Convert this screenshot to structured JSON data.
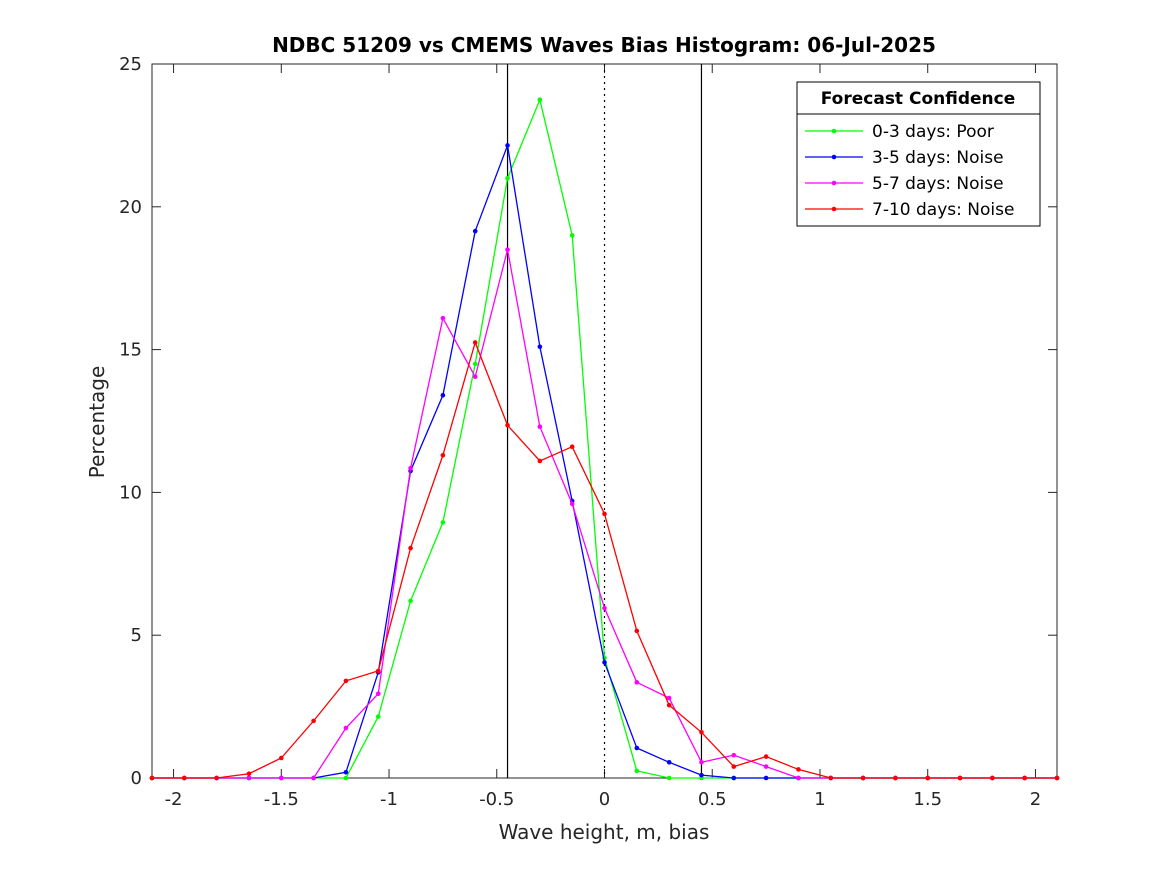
{
  "chart_data": {
    "type": "line",
    "title": "NDBC 51209 vs CMEMS Waves Bias Histogram: 06-Jul-2025",
    "xlabel": "Wave height, m, bias",
    "ylabel": "Percentage",
    "xlim": [
      -2.1,
      2.1
    ],
    "ylim": [
      0,
      25
    ],
    "xticks": [
      -2,
      -1.5,
      -1,
      -0.5,
      0,
      0.5,
      1,
      1.5,
      2
    ],
    "xtick_labels": [
      "-2",
      "-1.5",
      "-1",
      "-0.5",
      "0",
      "0.5",
      "1",
      "1.5",
      "2"
    ],
    "yticks": [
      0,
      5,
      10,
      15,
      20,
      25
    ],
    "ytick_labels": [
      "0",
      "5",
      "10",
      "15",
      "20",
      "25"
    ],
    "vertical_lines": [
      {
        "x": -0.45,
        "style": "solid",
        "color": "#000000"
      },
      {
        "x": 0,
        "style": "dotted",
        "color": "#000000"
      },
      {
        "x": 0.45,
        "style": "solid",
        "color": "#000000"
      }
    ],
    "legend": {
      "title": "Forecast Confidence",
      "location": "top-right"
    },
    "x": [
      -2.1,
      -1.95,
      -1.8,
      -1.65,
      -1.5,
      -1.35,
      -1.2,
      -1.05,
      -0.9,
      -0.75,
      -0.6,
      -0.45,
      -0.3,
      -0.15,
      0,
      0.15,
      0.3,
      0.45,
      0.6,
      0.75,
      0.9,
      1.05,
      1.2,
      1.35,
      1.5,
      1.65,
      1.8,
      1.95,
      2.1
    ],
    "series": [
      {
        "name": "0-3 days: Poor",
        "color": "#00ff00",
        "values": [
          0,
          0,
          0,
          0,
          0,
          0,
          0,
          2.15,
          6.2,
          8.95,
          14.5,
          21.0,
          23.75,
          19.0,
          4.2,
          0.25,
          0,
          0,
          0,
          0,
          0,
          0,
          0,
          0,
          0,
          0,
          0,
          0,
          0
        ]
      },
      {
        "name": "3-5 days: Noise",
        "color": "#0000ff",
        "values": [
          0,
          0,
          0,
          0,
          0,
          0,
          0.2,
          3.7,
          10.75,
          13.4,
          19.15,
          22.15,
          15.1,
          9.7,
          4.05,
          1.05,
          0.55,
          0.1,
          0,
          0,
          0,
          0,
          0,
          0,
          0,
          0,
          0,
          0,
          0
        ]
      },
      {
        "name": "5-7 days: Noise",
        "color": "#ff00ff",
        "values": [
          0,
          0,
          0,
          0,
          0,
          0,
          1.75,
          2.95,
          10.85,
          16.1,
          14.05,
          18.5,
          12.3,
          9.6,
          5.95,
          3.35,
          2.8,
          0.55,
          0.8,
          0.4,
          0,
          0,
          0,
          0,
          0,
          0,
          0,
          0,
          0
        ]
      },
      {
        "name": "7-10 days: Noise",
        "color": "#ff0000",
        "values": [
          0,
          0,
          0,
          0.15,
          0.7,
          2.0,
          3.4,
          3.75,
          8.05,
          11.3,
          15.25,
          12.35,
          11.1,
          11.6,
          9.25,
          5.15,
          2.55,
          1.6,
          0.4,
          0.75,
          0.3,
          0,
          0,
          0,
          0,
          0,
          0,
          0,
          0
        ]
      }
    ]
  }
}
